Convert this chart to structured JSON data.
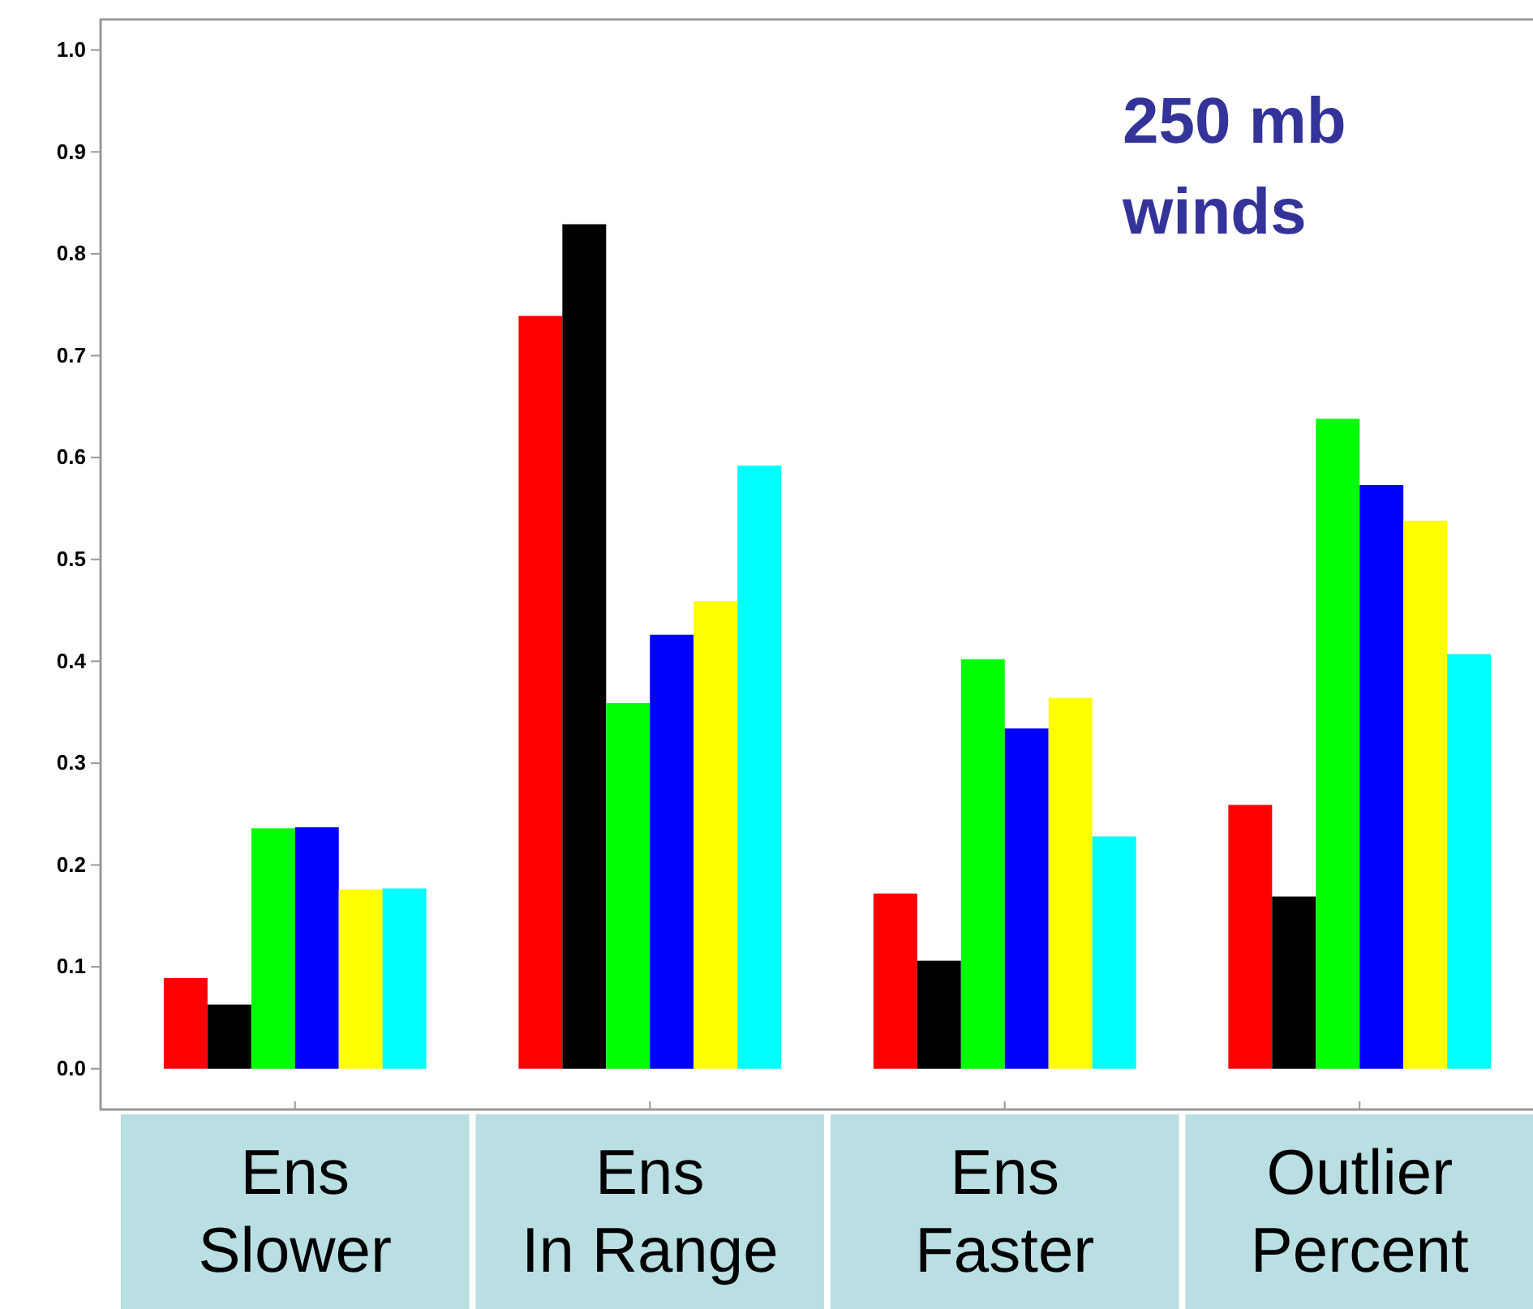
{
  "chart_data": {
    "type": "bar",
    "title": "250 mb winds",
    "categories": [
      "Ens Slower",
      "Ens In Range",
      "Ens Faster",
      "Outlier Percent"
    ],
    "series": [
      {
        "color": "#ff0000",
        "values": [
          0.089,
          0.739,
          0.172,
          0.259
        ]
      },
      {
        "color": "#000000",
        "values": [
          0.063,
          0.829,
          0.106,
          0.169
        ]
      },
      {
        "color": "#00ff00",
        "values": [
          0.236,
          0.359,
          0.402,
          0.638
        ]
      },
      {
        "color": "#0000ff",
        "values": [
          0.237,
          0.426,
          0.334,
          0.573
        ]
      },
      {
        "color": "#ffff00",
        "values": [
          0.176,
          0.459,
          0.364,
          0.538
        ]
      },
      {
        "color": "#00ffff",
        "values": [
          0.177,
          0.592,
          0.228,
          0.407
        ]
      }
    ],
    "ylim": [
      -0.04,
      1.03
    ],
    "yticks": [
      {
        "value": 0,
        "label": "0.0"
      },
      0.1,
      0.2,
      0.3,
      0.4,
      0.5,
      0.6,
      0.7,
      0.8,
      0.9,
      {
        "value": 1,
        "label": "1.0"
      }
    ],
    "grid": false
  }
}
